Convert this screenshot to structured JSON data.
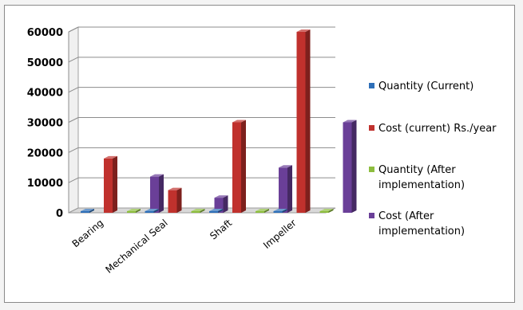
{
  "chart_data": {
    "type": "bar",
    "style": "3d-clustered-column",
    "categories": [
      "Bearing",
      "Mechanical Seal",
      "Shaft",
      "Impeller"
    ],
    "series": [
      {
        "name": "Quantity (Current)",
        "color": "#2e6fb8",
        "values": [
          5,
          2,
          2,
          2
        ]
      },
      {
        "name": "Cost (current) Rs./year",
        "color": "#c0312d",
        "values": [
          18000,
          7500,
          30000,
          60000
        ]
      },
      {
        "name": "Quantity (After implementation)",
        "color": "#8dbd3e",
        "values": [
          3,
          1,
          1,
          1
        ]
      },
      {
        "name": "Cost (After implementation)",
        "color": "#6a3f98",
        "values": [
          12000,
          5000,
          15000,
          30000
        ]
      }
    ],
    "yticks": [
      0,
      10000,
      20000,
      30000,
      40000,
      50000,
      60000
    ],
    "ylim": [
      0,
      60000
    ],
    "grid": true,
    "legend": "right",
    "title": "",
    "xlabel": "",
    "ylabel": ""
  }
}
